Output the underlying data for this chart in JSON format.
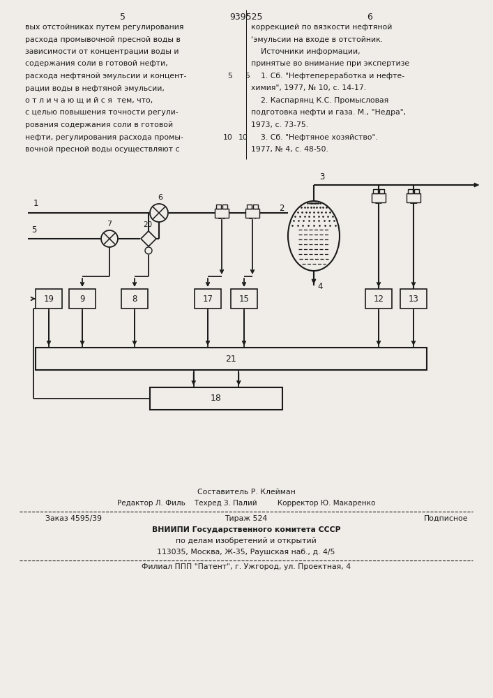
{
  "page_number_left": "5",
  "patent_number": "939525",
  "page_number_right": "6",
  "text_left": [
    "вых отстойниках путем регулирования",
    "расхода промывочной пресной воды в",
    "зависимости от концентрации воды и",
    "содержания соли в готовой нефти,",
    "расхода нефтяной эмульсии и концент-",
    "рации воды в нефтяной эмульсии,",
    "о т л и ч а ю щ и й с я  тем, что,",
    "с целью повышения точности регули-",
    "рования содержания соли в готовой",
    "нефти, регулирования расхода промы-",
    "вочной пресной воды осуществляют с"
  ],
  "text_right": [
    "коррекцией по вязкости нефтяной",
    "‘эмульсии на входе в отстойник.",
    "    Источники информации,",
    "принятые во внимание при экспертизе",
    "    1. Сб. \"Нефтепереработка и нефте-",
    "химия\", 1977, № 10, с. 14-17.",
    "    2. Каспарянц К.С. Промысловая",
    "подготовка нефти и газа. М., \"Недра\",",
    "1973, с. 73-75.",
    "    3. Сб. \"Нефтяное хозяйство\".",
    "1977, № 4, с. 48-50."
  ],
  "line_num_5_row": 4,
  "line_num_10_row": 9,
  "footer_composer": "Составитель Р. Клейман",
  "footer_editor_row": "Редактор Л. Филь    Техред З. Палий         Корректор Ю. Макаренко",
  "footer_order": "Заказ 4595/39",
  "footer_tirazh": "Тираж 524",
  "footer_podpisnoe": "Подписное",
  "footer_org": "ВНИИПИ Государственного комитета СССР",
  "footer_dept": "по делам изобретений и открытий",
  "footer_addr": "113035, Москва, Ж-35, Раушская наб., д. 4/5",
  "footer_filial": "Филиал ППП \"Патент\", г. Ужгород, ул. Проектная, 4",
  "bg_color": "#f0ede8",
  "line_color": "#1a1a1a",
  "text_color": "#1a1a1a"
}
